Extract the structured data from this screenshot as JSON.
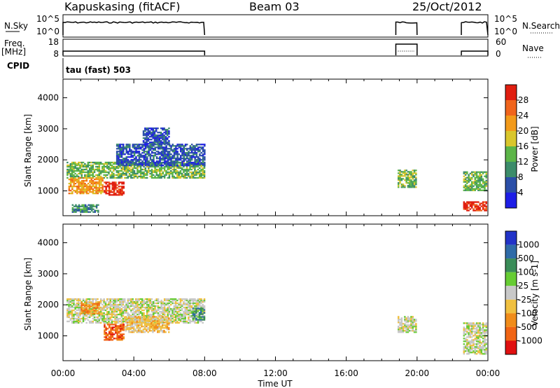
{
  "header": {
    "title": "Kapuskasing (fitACF)",
    "beam": "Beam 03",
    "date": "25/Oct/2012"
  },
  "labels": {
    "nsky": "N.Sky",
    "nsearch": "N.Search",
    "freq": "Freq.",
    "mhz": "[MHz]",
    "nave": "Nave",
    "cpid": "CPID",
    "cpid_value": "tau (fast) 503",
    "ylabel": "Slant Range [km]",
    "xlabel": "Time UT"
  },
  "colors": {
    "power": [
      "#1e1ee6",
      "#2b4fa8",
      "#3c8c6a",
      "#5cb548",
      "#d9c62c",
      "#f29a1a",
      "#f0641c",
      "#e01e10"
    ],
    "velocity": [
      "#2233c8",
      "#2f6ba8",
      "#3a8c58",
      "#66cc33",
      "#c8c8c8",
      "#f0c040",
      "#f08c1a",
      "#f06414",
      "#e01010"
    ],
    "ground_scatter": "#bebeb4"
  },
  "chart_data": [
    {
      "type": "line",
      "name": "nsky-nsearch-panel",
      "left_labels": [
        "10^5",
        "10^0"
      ],
      "right_labels": [
        "10^5",
        "10^0"
      ],
      "segments": [
        [
          0,
          8
        ],
        [
          18.8,
          20.0
        ],
        [
          22.5,
          24
        ]
      ]
    },
    {
      "type": "line",
      "name": "freq-nave-panel",
      "left_ticks": [
        "18",
        "8"
      ],
      "right_ticks": [
        "60",
        "0"
      ],
      "segments": [
        [
          0,
          8
        ],
        [
          18.8,
          20.0
        ],
        [
          22.5,
          24
        ]
      ]
    },
    {
      "type": "heatmap",
      "name": "power",
      "ylabel": "Slant Range [km]",
      "y_ticks": [
        1000,
        2000,
        3000,
        4000
      ],
      "ylim": [
        200,
        4600
      ],
      "xlim": [
        0,
        24
      ],
      "colorbar_label": "Power [dB]",
      "colorbar_ticks": [
        "28",
        "24",
        "20",
        "16",
        "12",
        "8",
        "4"
      ],
      "blobs": [
        {
          "t0": 0.2,
          "t1": 8.0,
          "r0": 1400,
          "r1": 1900,
          "level": 3
        },
        {
          "t0": 0.3,
          "t1": 2.2,
          "r0": 900,
          "r1": 1400,
          "level": 5
        },
        {
          "t0": 2.3,
          "t1": 3.4,
          "r0": 850,
          "r1": 1300,
          "level": 7
        },
        {
          "t0": 3.0,
          "t1": 8.0,
          "r0": 1800,
          "r1": 2500,
          "level": 1
        },
        {
          "t0": 4.5,
          "t1": 6.0,
          "r0": 2500,
          "r1": 3000,
          "level": 1
        },
        {
          "t0": 0.5,
          "t1": 2.0,
          "r0": 300,
          "r1": 550,
          "level": 2
        },
        {
          "t0": 18.9,
          "t1": 19.9,
          "r0": 1100,
          "r1": 1650,
          "level": 3
        },
        {
          "t0": 22.6,
          "t1": 23.95,
          "r0": 1000,
          "r1": 1600,
          "level": 3
        },
        {
          "t0": 22.6,
          "t1": 23.95,
          "r0": 350,
          "r1": 650,
          "level": 7
        }
      ]
    },
    {
      "type": "heatmap",
      "name": "velocity",
      "ylabel": "Slant Range [km]",
      "y_ticks": [
        1000,
        2000,
        3000,
        4000
      ],
      "ylim": [
        200,
        4600
      ],
      "xlim": [
        0,
        24
      ],
      "x_ticks": [
        "00:00",
        "04:00",
        "08:00",
        "12:00",
        "16:00",
        "20:00",
        "00:00"
      ],
      "xlabel": "Time UT",
      "colorbar_label": "Velocity [m s-1]",
      "colorbar_ticks": [
        "1000",
        "500",
        "100",
        "25",
        "-25",
        "-100",
        "-500",
        "-1000"
      ],
      "blobs": [
        {
          "t0": 0.2,
          "t1": 8.0,
          "r0": 1400,
          "r1": 2200,
          "level": 4
        },
        {
          "t0": 2.3,
          "t1": 3.4,
          "r0": 850,
          "r1": 1350,
          "level": 7
        },
        {
          "t0": 1.0,
          "t1": 2.0,
          "r0": 1700,
          "r1": 2100,
          "level": 6
        },
        {
          "t0": 3.5,
          "t1": 6.0,
          "r0": 1100,
          "r1": 1600,
          "level": 5
        },
        {
          "t0": 7.3,
          "t1": 8.0,
          "r0": 1500,
          "r1": 1900,
          "level": 2
        },
        {
          "t0": 18.9,
          "t1": 19.9,
          "r0": 1100,
          "r1": 1600,
          "level": 4
        },
        {
          "t0": 22.6,
          "t1": 23.95,
          "r0": 400,
          "r1": 1400,
          "level": 4
        }
      ]
    }
  ]
}
